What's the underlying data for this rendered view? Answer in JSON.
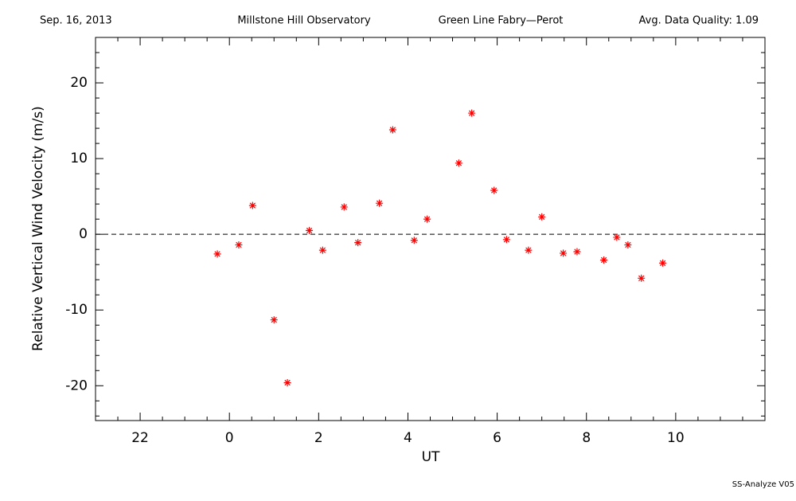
{
  "header": {
    "date": "Sep. 16, 2013",
    "observatory": "Millstone Hill Observatory",
    "instrument": "Green Line Fabry—Perot",
    "quality": "Avg. Data Quality: 1.09"
  },
  "footer": "SS-Analyze V05",
  "chart_data": {
    "type": "scatter",
    "x_label": "UT",
    "y_label": "Relative Vertical Wind Velocity (m/s)",
    "series": [
      {
        "color": "#ff0000",
        "marker": "asterisk",
        "x": [
          -0.27,
          0.21,
          0.52,
          1.0,
          1.3,
          1.79,
          2.09,
          2.57,
          2.88,
          3.36,
          3.66,
          4.14,
          4.43,
          5.14,
          5.43,
          5.93,
          6.21,
          6.7,
          7.0,
          7.48,
          7.79,
          8.39,
          8.68,
          8.93,
          9.23,
          9.71
        ],
        "values": [
          -2.6,
          -1.4,
          3.8,
          -11.3,
          -19.6,
          0.5,
          -2.1,
          3.6,
          -1.1,
          4.1,
          13.8,
          -0.8,
          2.0,
          9.4,
          16.0,
          5.8,
          -0.7,
          -2.1,
          2.3,
          -2.5,
          -2.3,
          -3.4,
          -0.4,
          -1.4,
          -5.8,
          -3.8
        ]
      }
    ],
    "xlim": [
      -3,
      12
    ],
    "xticks": [
      {
        "value": -2,
        "label": "22"
      },
      0,
      2,
      4,
      6,
      8,
      10
    ],
    "ylim": [
      -24.6,
      26
    ],
    "yticks": [
      -20,
      -10,
      0,
      10,
      20
    ],
    "x_minor_per_major": 4,
    "y_minor_per_major": 5,
    "zero_line": true,
    "grid": false
  }
}
